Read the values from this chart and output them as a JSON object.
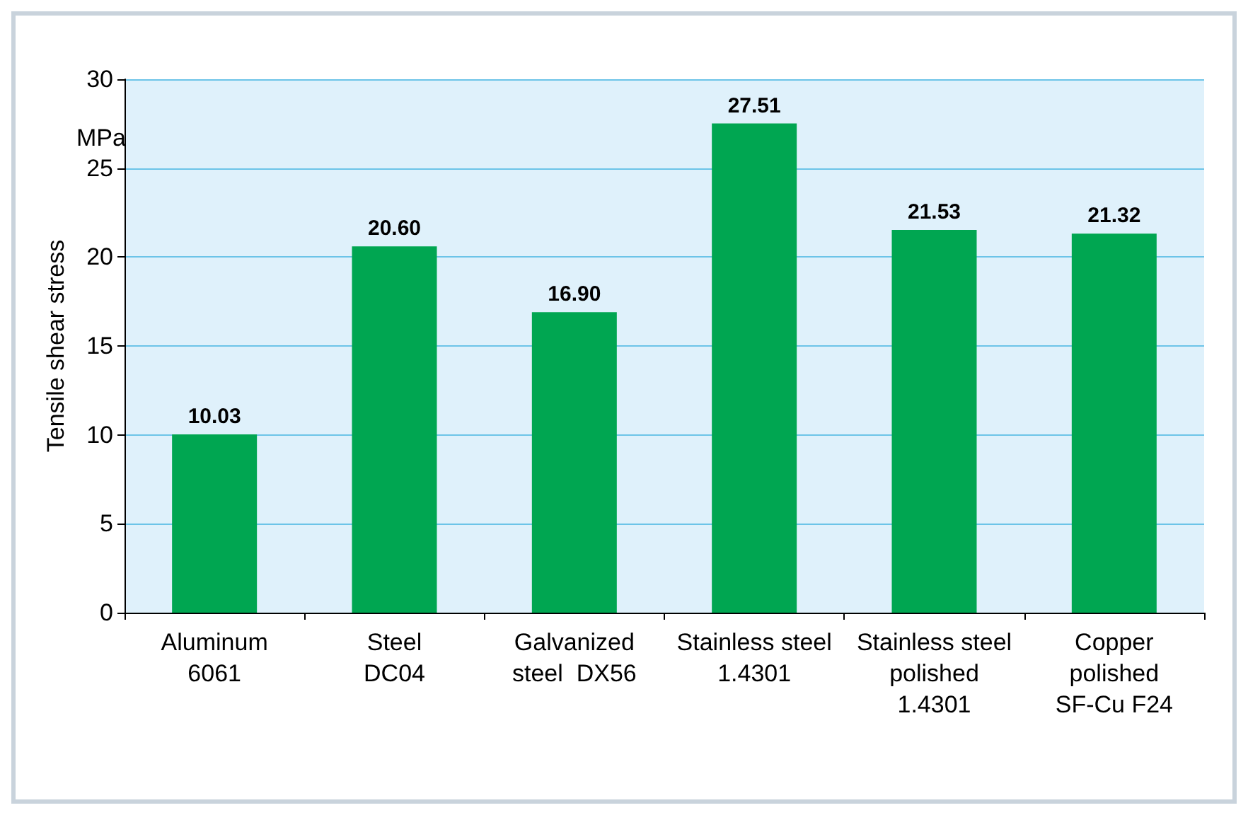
{
  "chart_data": {
    "type": "bar",
    "ylabel": "Tensile shear stress",
    "annotations": [
      "MPa"
    ],
    "categories": [
      "Aluminum\n6061",
      "Steel\nDC04",
      "Galvanized\nsteel  DX56",
      "Stainless steel\n1.4301",
      "Stainless steel\npolished\n1.4301",
      "Copper\npolished\nSF-Cu F24"
    ],
    "values": [
      10.03,
      20.6,
      16.9,
      27.51,
      21.53,
      21.32
    ],
    "value_labels": [
      "10.03",
      "20.60",
      "16.90",
      "27.51",
      "21.53",
      "21.32"
    ],
    "color": "#00a651",
    "ylim": [
      0,
      30
    ],
    "yticks": [
      0,
      5,
      10,
      15,
      20,
      25,
      30
    ],
    "grid": "y"
  }
}
